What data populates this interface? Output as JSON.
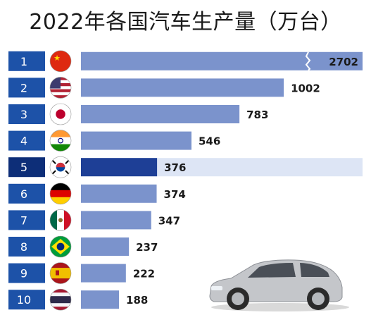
{
  "title": "2022年各国汽车生产量（万台）",
  "chart_data": {
    "type": "bar",
    "orientation": "horizontal",
    "title": "2022年各国汽车生产量（万台）",
    "xlabel": "",
    "ylabel": "",
    "categories": [
      "1",
      "2",
      "3",
      "4",
      "5",
      "6",
      "7",
      "8",
      "9",
      "10"
    ],
    "values": [
      2702,
      1002,
      783,
      546,
      376,
      374,
      347,
      237,
      222,
      188
    ],
    "value_labels": [
      "2702",
      "1002",
      "783",
      "546",
      "376",
      "374",
      "347",
      "237",
      "222",
      "188"
    ],
    "flags": [
      "china-flag",
      "usa-flag",
      "japan-flag",
      "india-flag",
      "south-korea-flag",
      "germany-flag",
      "mexico-flag",
      "brazil-flag",
      "spain-flag",
      "thailand-flag"
    ],
    "axis_break": true,
    "highlight_rank": "5",
    "grid": false,
    "colors": {
      "bar": "#7b93cc",
      "highlight_bar": "#1e3f96",
      "row_band": "#dde5f5",
      "rank_box": "#1d52a8",
      "highlight_rank_box": "#0d2e78"
    }
  },
  "decoration": {
    "car_icon": "car-icon"
  }
}
